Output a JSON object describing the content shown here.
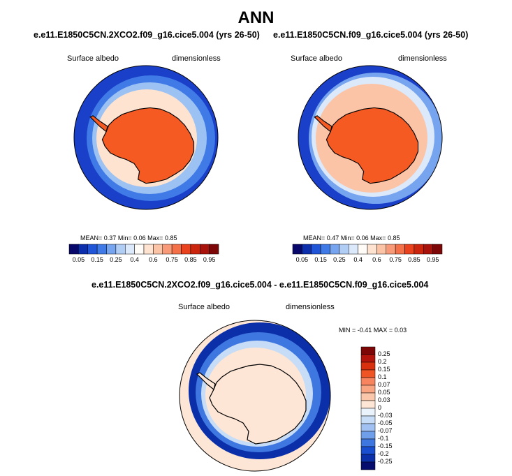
{
  "main_title": "ANN",
  "panels": {
    "left": {
      "case": "e.e11.E1850C5CN.2XCO2.f09_g16.cice5.004 (yrs 26-50)",
      "variable": "Surface albedo",
      "units": "dimensionless",
      "stats": {
        "mean_label": "MEAN=",
        "mean": "0.37",
        "min_label": "Min=",
        "min": "0.06",
        "max_label": "Max=",
        "max": "0.85"
      }
    },
    "right": {
      "case": "e.e11.E1850C5CN.f09_g16.cice5.004 (yrs 26-50)",
      "variable": "Surface albedo",
      "units": "dimensionless",
      "stats": {
        "mean_label": "MEAN=",
        "mean": "0.47",
        "min_label": "Min=",
        "min": "0.06",
        "max_label": "Max=",
        "max": "0.85"
      }
    },
    "diff": {
      "case": "e.e11.E1850C5CN.2XCO2.f09_g16.cice5.004 - e.e11.E1850C5CN.f09_g16.cice5.004",
      "variable": "Surface albedo",
      "units": "dimensionless",
      "stats": {
        "min_label": "MIN =",
        "min": "-0.41",
        "max_label": "MAX =",
        "max": "0.03"
      }
    }
  },
  "colorbar_abs": {
    "labels": [
      "0.05",
      "0.15",
      "0.25",
      "0.4",
      "0.6",
      "0.75",
      "0.85",
      "0.95"
    ],
    "colors": [
      "#08086b",
      "#0c2fae",
      "#1f55d6",
      "#3f7ae6",
      "#77a4ef",
      "#b0cdf5",
      "#dce9fa",
      "#fffbf6",
      "#fde3d0",
      "#fbc4a6",
      "#f89a77",
      "#f47048",
      "#e8431e",
      "#cc250e",
      "#a8120a",
      "#7d0606"
    ]
  },
  "colorbar_diff": {
    "labels": [
      "0.25",
      "0.2",
      "0.15",
      "0.1",
      "0.07",
      "0.05",
      "0.03",
      "0",
      "-0.03",
      "-0.05",
      "-0.07",
      "-0.1",
      "-0.15",
      "-0.2",
      "-0.25"
    ],
    "colors": [
      "#7d0606",
      "#b3150c",
      "#d8300f",
      "#ef5424",
      "#f7845f",
      "#faa582",
      "#fbc7aa",
      "#fde6d6",
      "#eaf2fc",
      "#c7dcf6",
      "#a0c1f1",
      "#6f9eea",
      "#3f77e0",
      "#1a4ed0",
      "#0a2fa8",
      "#060c6e"
    ]
  },
  "chart_data": [
    {
      "type": "heatmap",
      "title": "e.e11.E1850C5CN.2XCO2.f09_g16.cice5.004 (yrs 26-50)",
      "variable": "Surface albedo",
      "units": "dimensionless",
      "projection": "south polar stereographic",
      "mean": 0.37,
      "min": 0.06,
      "max": 0.85,
      "levels": [
        0.05,
        0.1,
        0.15,
        0.2,
        0.25,
        0.3,
        0.4,
        0.5,
        0.6,
        0.65,
        0.7,
        0.75,
        0.8,
        0.85,
        0.9,
        0.95
      ]
    },
    {
      "type": "heatmap",
      "title": "e.e11.E1850C5CN.f09_g16.cice5.004 (yrs 26-50)",
      "variable": "Surface albedo",
      "units": "dimensionless",
      "projection": "south polar stereographic",
      "mean": 0.47,
      "min": 0.06,
      "max": 0.85,
      "levels": [
        0.05,
        0.1,
        0.15,
        0.2,
        0.25,
        0.3,
        0.4,
        0.5,
        0.6,
        0.65,
        0.7,
        0.75,
        0.8,
        0.85,
        0.9,
        0.95
      ]
    },
    {
      "type": "heatmap",
      "title": "e.e11.E1850C5CN.2XCO2.f09_g16.cice5.004 - e.e11.E1850C5CN.f09_g16.cice5.004",
      "variable": "Surface albedo",
      "units": "dimensionless",
      "projection": "south polar stereographic",
      "min": -0.41,
      "max": 0.03,
      "levels": [
        -0.25,
        -0.2,
        -0.15,
        -0.1,
        -0.07,
        -0.05,
        -0.03,
        0,
        0.03,
        0.05,
        0.07,
        0.1,
        0.15,
        0.2,
        0.25
      ]
    }
  ]
}
